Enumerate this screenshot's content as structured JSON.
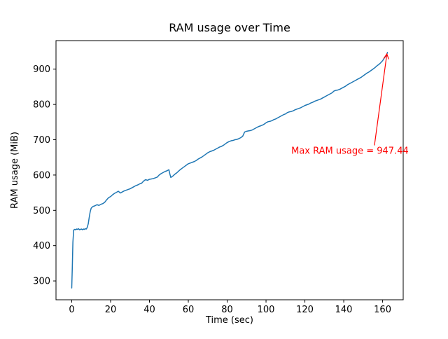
{
  "figure": {
    "background": "#ffffff"
  },
  "chart_data": {
    "type": "line",
    "title": "RAM usage over Time",
    "xlabel": "Time (sec)",
    "ylabel": "RAM usage (MiB)",
    "line_color": "#1f77b4",
    "xlim": [
      -8.1,
      170.6
    ],
    "ylim": [
      246.6,
      980.8
    ],
    "xticks": [
      0,
      20,
      40,
      60,
      80,
      100,
      120,
      140,
      160
    ],
    "yticks": [
      300,
      400,
      500,
      600,
      700,
      800,
      900
    ],
    "grid": false,
    "legend": "none",
    "annotation": {
      "text": "Max RAM usage = 947.44",
      "color": "#ff0000",
      "text_xy": [
        113,
        660
      ],
      "arrow_tail_xy": [
        155.8,
        684
      ],
      "arrow_tip_xy": [
        162.2,
        943
      ]
    },
    "series": [
      {
        "name": "RAM usage",
        "points": [
          [
            0,
            280
          ],
          [
            0.3,
            340
          ],
          [
            0.6,
            410
          ],
          [
            1,
            444
          ],
          [
            1.5,
            446
          ],
          [
            2,
            445
          ],
          [
            2.5,
            447
          ],
          [
            3,
            446
          ],
          [
            3.5,
            448
          ],
          [
            4,
            445
          ],
          [
            4.5,
            446
          ],
          [
            5,
            447
          ],
          [
            5.5,
            445
          ],
          [
            6,
            447
          ],
          [
            6.5,
            446
          ],
          [
            7,
            448
          ],
          [
            7.5,
            447
          ],
          [
            8,
            452
          ],
          [
            8.5,
            462
          ],
          [
            9,
            480
          ],
          [
            9.5,
            496
          ],
          [
            10,
            506
          ],
          [
            10.5,
            509
          ],
          [
            11,
            511
          ],
          [
            12,
            513
          ],
          [
            13,
            516
          ],
          [
            14,
            514
          ],
          [
            15,
            517
          ],
          [
            16,
            519
          ],
          [
            17,
            523
          ],
          [
            18,
            530
          ],
          [
            19,
            536
          ],
          [
            20,
            539
          ],
          [
            21,
            544
          ],
          [
            22,
            548
          ],
          [
            23,
            551
          ],
          [
            24,
            554
          ],
          [
            25,
            549
          ],
          [
            26,
            552
          ],
          [
            27,
            555
          ],
          [
            28,
            557
          ],
          [
            29,
            559
          ],
          [
            30,
            561
          ],
          [
            31,
            564
          ],
          [
            32,
            567
          ],
          [
            33,
            570
          ],
          [
            34,
            572
          ],
          [
            35,
            575
          ],
          [
            36,
            577
          ],
          [
            37,
            583
          ],
          [
            38,
            587
          ],
          [
            39,
            585
          ],
          [
            40,
            588
          ],
          [
            41,
            589
          ],
          [
            42,
            590
          ],
          [
            43,
            592
          ],
          [
            44,
            594
          ],
          [
            45,
            600
          ],
          [
            46,
            604
          ],
          [
            47,
            607
          ],
          [
            48,
            610
          ],
          [
            49,
            612
          ],
          [
            50,
            615
          ],
          [
            50.5,
            603
          ],
          [
            51,
            593
          ],
          [
            52,
            597
          ],
          [
            53,
            602
          ],
          [
            54,
            606
          ],
          [
            55,
            611
          ],
          [
            56,
            616
          ],
          [
            57,
            620
          ],
          [
            58,
            624
          ],
          [
            59,
            628
          ],
          [
            60,
            632
          ],
          [
            61,
            634
          ],
          [
            62,
            636
          ],
          [
            63,
            638
          ],
          [
            64,
            641
          ],
          [
            65,
            645
          ],
          [
            66,
            648
          ],
          [
            67,
            651
          ],
          [
            68,
            655
          ],
          [
            69,
            659
          ],
          [
            70,
            663
          ],
          [
            71,
            666
          ],
          [
            72,
            668
          ],
          [
            73,
            670
          ],
          [
            74,
            673
          ],
          [
            75,
            676
          ],
          [
            76,
            679
          ],
          [
            77,
            681
          ],
          [
            78,
            684
          ],
          [
            79,
            688
          ],
          [
            80,
            692
          ],
          [
            81,
            695
          ],
          [
            82,
            697
          ],
          [
            83,
            698
          ],
          [
            84,
            700
          ],
          [
            85,
            701
          ],
          [
            86,
            703
          ],
          [
            87,
            706
          ],
          [
            88,
            710
          ],
          [
            88.5,
            716
          ],
          [
            89,
            722
          ],
          [
            90,
            724
          ],
          [
            91,
            725
          ],
          [
            92,
            726
          ],
          [
            93,
            728
          ],
          [
            94,
            731
          ],
          [
            95,
            734
          ],
          [
            96,
            737
          ],
          [
            97,
            739
          ],
          [
            98,
            741
          ],
          [
            99,
            744
          ],
          [
            100,
            748
          ],
          [
            101,
            751
          ],
          [
            102,
            752
          ],
          [
            103,
            754
          ],
          [
            104,
            757
          ],
          [
            105,
            759
          ],
          [
            106,
            762
          ],
          [
            107,
            765
          ],
          [
            108,
            768
          ],
          [
            109,
            771
          ],
          [
            110,
            773
          ],
          [
            111,
            777
          ],
          [
            112,
            779
          ],
          [
            113,
            780
          ],
          [
            114,
            782
          ],
          [
            115,
            785
          ],
          [
            116,
            787
          ],
          [
            117,
            789
          ],
          [
            118,
            791
          ],
          [
            119,
            794
          ],
          [
            120,
            797
          ],
          [
            121,
            799
          ],
          [
            122,
            801
          ],
          [
            123,
            804
          ],
          [
            124,
            806
          ],
          [
            125,
            809
          ],
          [
            126,
            811
          ],
          [
            127,
            813
          ],
          [
            128,
            815
          ],
          [
            129,
            818
          ],
          [
            130,
            821
          ],
          [
            131,
            824
          ],
          [
            132,
            827
          ],
          [
            133,
            830
          ],
          [
            134,
            833
          ],
          [
            135,
            838
          ],
          [
            136,
            840
          ],
          [
            137,
            841
          ],
          [
            138,
            843
          ],
          [
            139,
            846
          ],
          [
            140,
            849
          ],
          [
            141,
            852
          ],
          [
            142,
            856
          ],
          [
            143,
            859
          ],
          [
            144,
            862
          ],
          [
            145,
            865
          ],
          [
            146,
            868
          ],
          [
            147,
            871
          ],
          [
            148,
            874
          ],
          [
            149,
            877
          ],
          [
            150,
            881
          ],
          [
            151,
            885
          ],
          [
            152,
            889
          ],
          [
            153,
            892
          ],
          [
            154,
            896
          ],
          [
            155,
            900
          ],
          [
            156,
            904
          ],
          [
            157,
            909
          ],
          [
            158,
            913
          ],
          [
            159,
            918
          ],
          [
            160,
            924
          ],
          [
            160.5,
            928
          ],
          [
            161,
            933
          ],
          [
            161.5,
            936
          ],
          [
            162,
            940
          ],
          [
            162.3,
            944
          ],
          [
            162.5,
            947.44
          ]
        ]
      }
    ]
  }
}
